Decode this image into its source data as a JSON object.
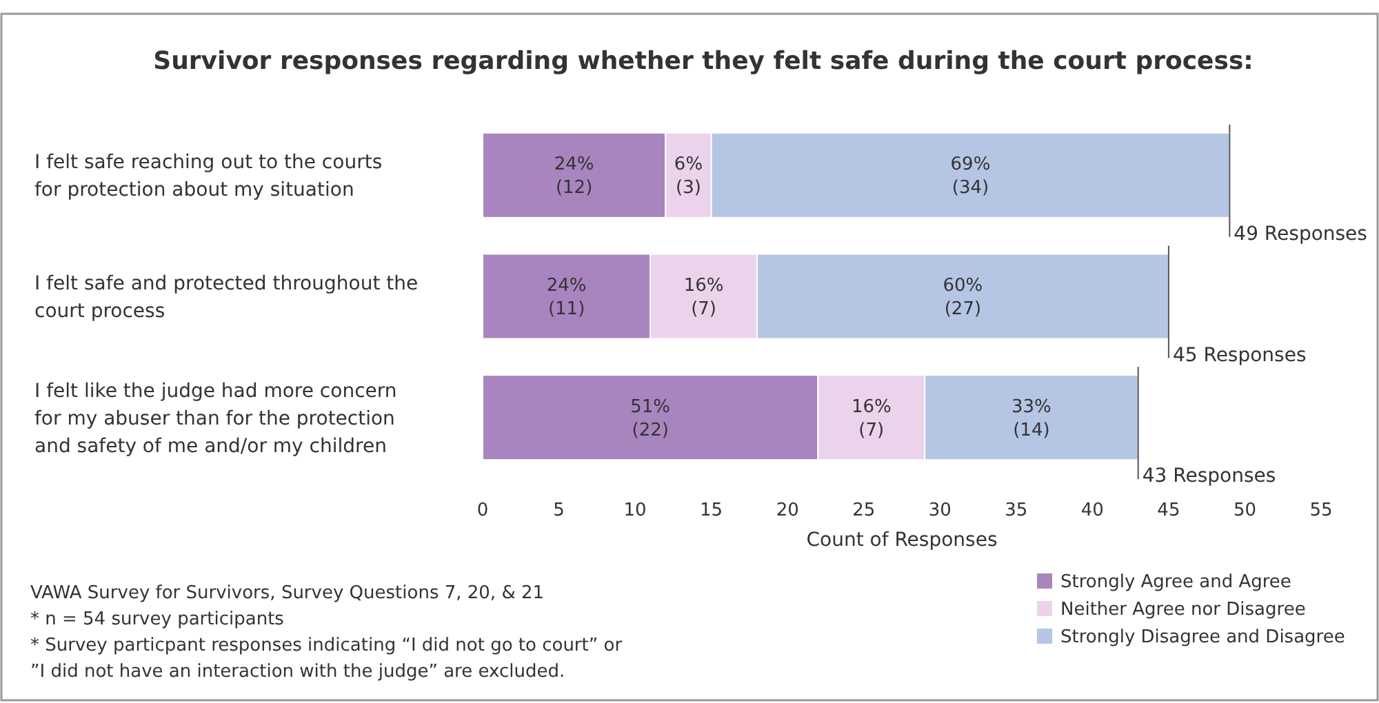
{
  "chart_data": {
    "type": "bar",
    "orientation": "horizontal",
    "stacked": true,
    "title": "Survivor responses regarding whether they felt safe during the court process:",
    "categories": [
      "I felt safe reaching out to the courts for protection about my situation",
      "I felt safe and protected throughout the court process",
      "I felt like the judge had more concern for my abuser than for the protection and safety of me and/or my children"
    ],
    "series": [
      {
        "name": "Strongly Agree and Agree",
        "color": "#a985bf",
        "values": [
          12,
          11,
          22
        ],
        "value_labels": [
          "24% (12)",
          "24% (11)",
          "51% (22)"
        ]
      },
      {
        "name": "Neither Agree nor Disagree",
        "color": "#ebd3eb",
        "values": [
          3,
          7,
          7
        ],
        "value_labels": [
          "6% (3)",
          "16% (7)",
          "16% (7)"
        ]
      },
      {
        "name": "Strongly Disagree and Disagree",
        "color": "#b4c6e4",
        "values": [
          34,
          27,
          14
        ],
        "value_labels": [
          "69% (34)",
          "60% (27)",
          "33% (14)"
        ]
      }
    ],
    "totals": [
      "49 Responses",
      "45 Responses",
      "43 Responses"
    ],
    "xlim": [
      0,
      55
    ],
    "xticks": [
      0,
      5,
      10,
      15,
      20,
      25,
      30,
      35,
      40,
      45,
      50,
      55
    ],
    "xlabel": "Count of Responses",
    "grid": false,
    "legend": "bottom right",
    "annotations": [
      "VAWA Survey for Survivors, Survey Questions 7, 20, & 21",
      "* n = 54 survey participants",
      "* Survey particpant responses indicating “I did not go to court” or ”I did not have an interaction with the judge” are excluded."
    ]
  }
}
